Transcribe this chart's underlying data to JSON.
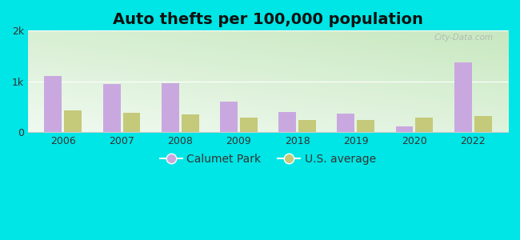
{
  "title": "Auto thefts per 100,000 population",
  "years": [
    "2006",
    "2007",
    "2008",
    "2009",
    "2018",
    "2019",
    "2020",
    "2022"
  ],
  "calumet_park": [
    1100,
    950,
    960,
    600,
    390,
    360,
    110,
    1380
  ],
  "us_average": [
    420,
    380,
    340,
    290,
    240,
    230,
    290,
    310
  ],
  "calumet_color": "#c9a8e0",
  "us_color": "#c5c97a",
  "background_outer": "#00e5e5",
  "background_inner_top_left": "#f0faf0",
  "background_inner_bottom_right": "#c8e8c0",
  "ylim": [
    0,
    2000
  ],
  "ytick_labels": [
    "0",
    "1k",
    "2k"
  ],
  "bar_width": 0.3,
  "title_fontsize": 14,
  "tick_fontsize": 9,
  "legend_fontsize": 10,
  "watermark": "City-Data.com"
}
